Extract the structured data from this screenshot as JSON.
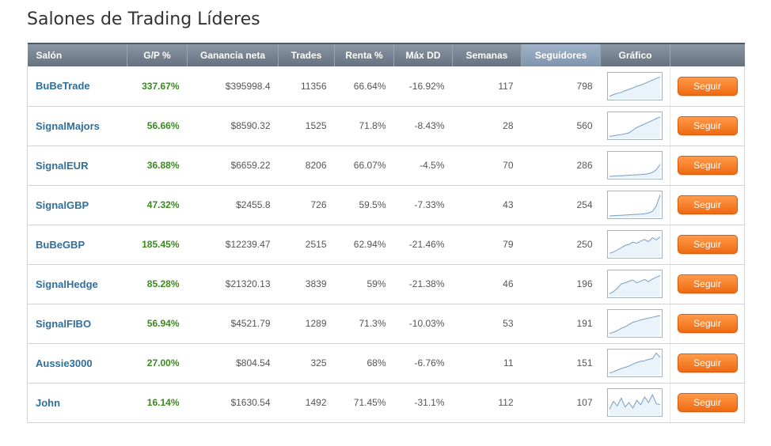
{
  "page": {
    "title": "Salones de Trading Líderes"
  },
  "table": {
    "headers": {
      "salon": "Salón",
      "gp": "G/P %",
      "ganancia": "Ganancia neta",
      "trades": "Trades",
      "renta": "Renta %",
      "maxdd": "Máx DD",
      "semanas": "Semanas",
      "seguidores": "Seguidores",
      "grafico": "Gráfico"
    },
    "follow_label": "Seguir",
    "rows": [
      {
        "name": "BuBeTrade",
        "gp": "337.67%",
        "ganancia": "$395998.4",
        "trades": "11356",
        "renta": "66.64%",
        "maxdd": "-16.92%",
        "semanas": "117",
        "seguidores": "798",
        "spark": [
          0.05,
          0.12,
          0.18,
          0.22,
          0.3,
          0.36,
          0.42,
          0.5,
          0.55,
          0.62,
          0.7,
          0.78,
          0.85,
          0.92
        ]
      },
      {
        "name": "SignalMajors",
        "gp": "56.66%",
        "ganancia": "$8590.32",
        "trades": "1525",
        "renta": "71.8%",
        "maxdd": "-8.43%",
        "semanas": "28",
        "seguidores": "560",
        "spark": [
          0.02,
          0.05,
          0.08,
          0.1,
          0.14,
          0.18,
          0.3,
          0.42,
          0.5,
          0.58,
          0.66,
          0.74,
          0.82,
          0.9
        ]
      },
      {
        "name": "SignalEUR",
        "gp": "36.88%",
        "ganancia": "$6659.22",
        "trades": "8206",
        "renta": "66.07%",
        "maxdd": "-4.5%",
        "semanas": "70",
        "seguidores": "286",
        "spark": [
          0.0,
          0.01,
          0.02,
          0.03,
          0.04,
          0.05,
          0.06,
          0.07,
          0.08,
          0.1,
          0.12,
          0.18,
          0.3,
          0.55
        ]
      },
      {
        "name": "SignalGBP",
        "gp": "47.32%",
        "ganancia": "$2455.8",
        "trades": "726",
        "renta": "59.5%",
        "maxdd": "-7.33%",
        "semanas": "43",
        "seguidores": "254",
        "spark": [
          0.0,
          0.01,
          0.02,
          0.03,
          0.04,
          0.05,
          0.06,
          0.07,
          0.08,
          0.1,
          0.13,
          0.2,
          0.45,
          0.95
        ]
      },
      {
        "name": "BuBeGBP",
        "gp": "185.45%",
        "ganancia": "$12239.47",
        "trades": "2515",
        "renta": "62.94%",
        "maxdd": "-21.46%",
        "semanas": "79",
        "seguidores": "250",
        "spark": [
          0.1,
          0.15,
          0.25,
          0.35,
          0.45,
          0.5,
          0.6,
          0.55,
          0.65,
          0.72,
          0.62,
          0.8,
          0.7,
          0.85
        ]
      },
      {
        "name": "SignalHedge",
        "gp": "85.28%",
        "ganancia": "$21320.13",
        "trades": "3839",
        "renta": "59%",
        "maxdd": "-21.38%",
        "semanas": "46",
        "seguidores": "196",
        "spark": [
          0.05,
          0.15,
          0.3,
          0.5,
          0.55,
          0.62,
          0.68,
          0.55,
          0.62,
          0.7,
          0.6,
          0.72,
          0.8,
          0.88
        ]
      },
      {
        "name": "SignalFIBO",
        "gp": "56.94%",
        "ganancia": "$4521.79",
        "trades": "1289",
        "renta": "71.3%",
        "maxdd": "-10.03%",
        "semanas": "53",
        "seguidores": "191",
        "spark": [
          0.05,
          0.1,
          0.18,
          0.28,
          0.35,
          0.45,
          0.55,
          0.6,
          0.66,
          0.7,
          0.74,
          0.78,
          0.82,
          0.85
        ]
      },
      {
        "name": "Aussie3000",
        "gp": "27.00%",
        "ganancia": "$804.54",
        "trades": "325",
        "renta": "68%",
        "maxdd": "-6.76%",
        "semanas": "11",
        "seguidores": "151",
        "spark": [
          0.05,
          0.1,
          0.18,
          0.25,
          0.3,
          0.36,
          0.45,
          0.52,
          0.58,
          0.6,
          0.66,
          0.7,
          0.95,
          0.75
        ]
      },
      {
        "name": "John",
        "gp": "16.14%",
        "ganancia": "$1630.54",
        "trades": "1492",
        "renta": "71.45%",
        "maxdd": "-31.1%",
        "semanas": "112",
        "seguidores": "107",
        "spark": [
          0.2,
          0.55,
          0.35,
          0.7,
          0.3,
          0.5,
          0.25,
          0.6,
          0.4,
          0.75,
          0.5,
          0.85,
          0.45,
          0.4
        ]
      }
    ]
  },
  "colors": {
    "title": "#333333",
    "header_bg": "#6f7b88",
    "header_sorted_bg": "#8aa0b6",
    "salon_link": "#2e6f9e",
    "gp_text": "#3a8a1e",
    "follow_button": "#f07a22",
    "sparkline": "#7d9ec0"
  }
}
